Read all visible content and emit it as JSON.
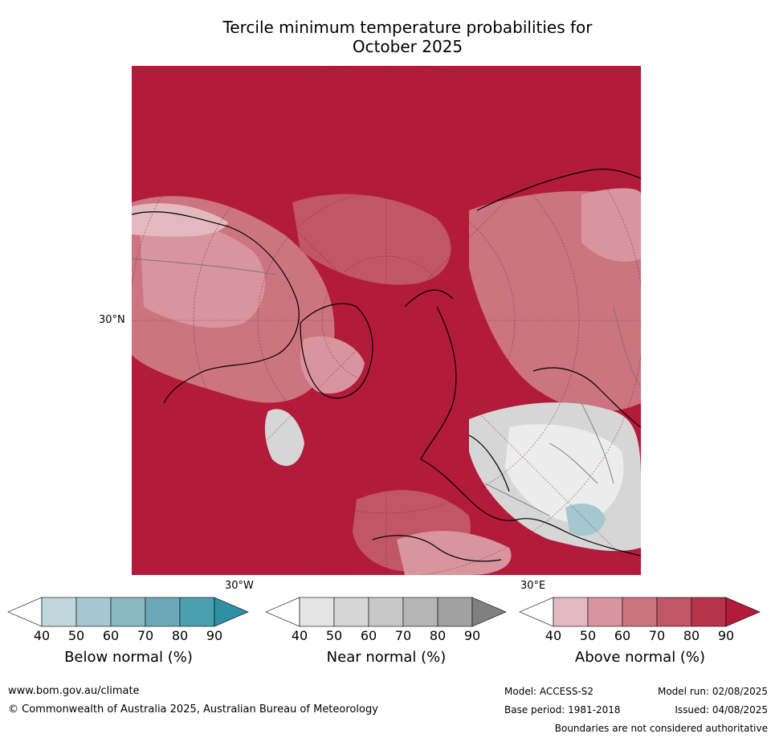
{
  "title": {
    "line1": "Tercile minimum temperature probabilities for",
    "line2": "October 2025"
  },
  "map": {
    "lat_label": "30°N",
    "lon_labels": {
      "west": "30°W",
      "east": "30°E"
    }
  },
  "legends": [
    {
      "label": "Below normal (%)",
      "ticks": [
        "40",
        "50",
        "60",
        "70",
        "80",
        "90"
      ],
      "colors": [
        "#ffffff",
        "#bfd7dd",
        "#a5c7cf",
        "#89b8c2",
        "#6aaab8",
        "#4a9fb0",
        "#2e8fa3"
      ]
    },
    {
      "label": "Near normal (%)",
      "ticks": [
        "40",
        "50",
        "60",
        "70",
        "80",
        "90"
      ],
      "colors": [
        "#ffffff",
        "#e4e4e4",
        "#d6d6d6",
        "#c8c8c8",
        "#b6b6b6",
        "#a1a1a1",
        "#808080"
      ]
    },
    {
      "label": "Above normal (%)",
      "ticks": [
        "40",
        "50",
        "60",
        "70",
        "80",
        "90"
      ],
      "colors": [
        "#ffffff",
        "#e3b9bf",
        "#d8959e",
        "#cc7480",
        "#c15667",
        "#b8344b",
        "#b31b3a"
      ]
    }
  ],
  "footer": {
    "url": "www.bom.gov.au/climate",
    "copyright": "© Commonwealth of Australia 2025, Australian Bureau of Meteorology",
    "model": "Model: ACCESS-S2",
    "model_run": "Model run: 02/08/2025",
    "base_period": "Base period: 1981-2018",
    "issued": "Issued: 04/08/2025",
    "boundaries": "Boundaries are not considered authoritative"
  }
}
